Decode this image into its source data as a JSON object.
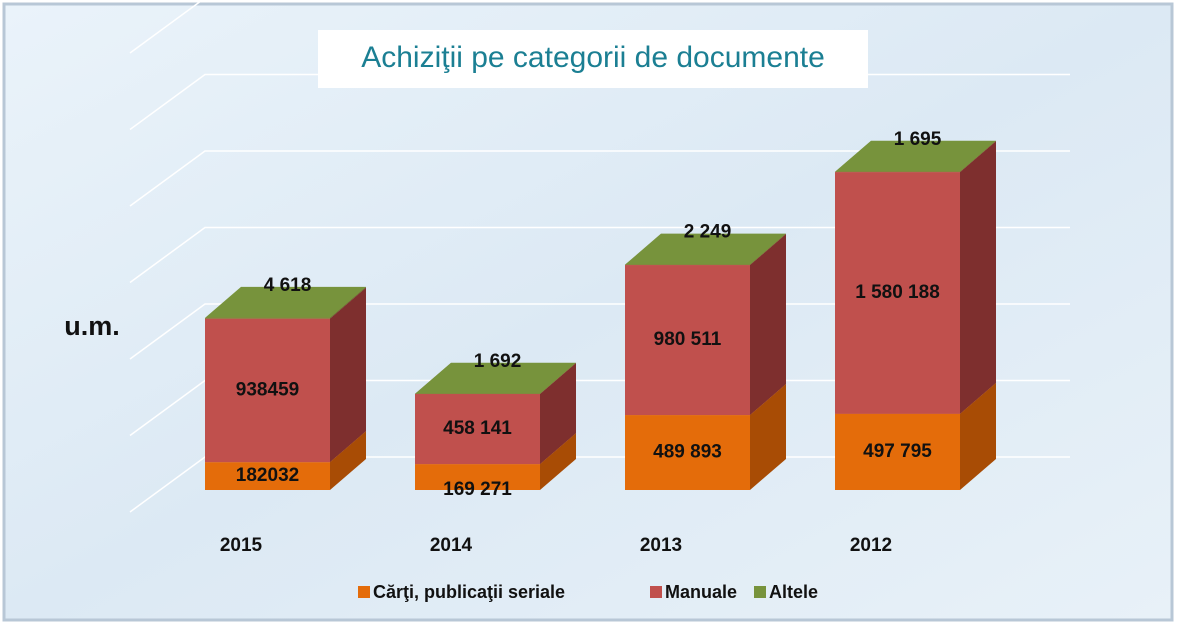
{
  "chart_data": {
    "type": "bar3d_stacked",
    "title": "Achiziţii pe categorii de documente",
    "y_label": "u.m.",
    "categories": [
      "2015",
      "2014",
      "2013",
      "2012"
    ],
    "series": [
      {
        "name": "Cărţi, publicaţii seriale",
        "color": "#e46c0a",
        "side": "#a84c05",
        "values": [
          182032,
          169271,
          489893,
          497795
        ],
        "value_labels": [
          "182032",
          "169 271",
          "489 893",
          "497 795"
        ]
      },
      {
        "name": "Manuale",
        "color": "#c0504d",
        "side": "#7e2f2e",
        "values": [
          938459,
          458141,
          980511,
          1580188
        ],
        "value_labels": [
          "938459",
          "458 141",
          "980 511",
          "1 580 188"
        ]
      },
      {
        "name": "Altele",
        "color": "#77933c",
        "side": "#5a7030",
        "values": [
          4618,
          1692,
          2249,
          1695
        ],
        "value_labels": [
          "4 618",
          "1 692",
          "2 249",
          "1 695"
        ]
      }
    ],
    "ylim": [
      0,
      3000000
    ],
    "yticks": [
      0,
      500000,
      1000000,
      1500000,
      2000000,
      2500000,
      3000000
    ],
    "grid": true,
    "legend": "bottom"
  }
}
